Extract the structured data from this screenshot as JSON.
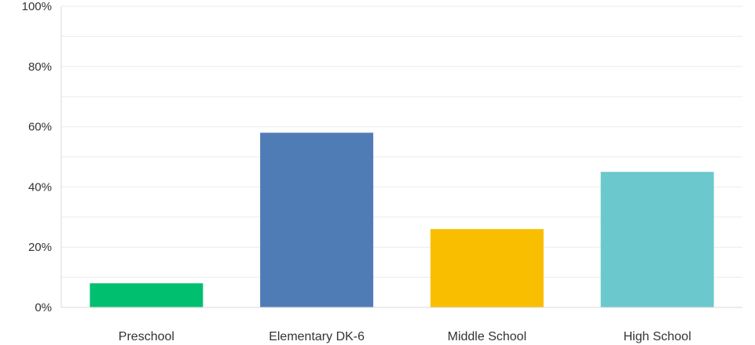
{
  "chart_data": {
    "type": "bar",
    "categories": [
      "Preschool",
      "Elementary DK-6",
      "Middle School",
      "High School"
    ],
    "values": [
      8,
      58,
      26,
      45
    ],
    "colors": [
      "#00bf6f",
      "#507cb6",
      "#f9be00",
      "#6bc8cd"
    ],
    "ylim": [
      0,
      100
    ],
    "yticks": [
      0,
      20,
      40,
      60,
      80,
      100
    ],
    "ytick_labels": [
      "0%",
      "20%",
      "40%",
      "60%",
      "80%",
      "100%"
    ],
    "grid": true,
    "gridline_color": "#ebebeb",
    "axis_color": "#d9d9d9",
    "legend": "none"
  }
}
